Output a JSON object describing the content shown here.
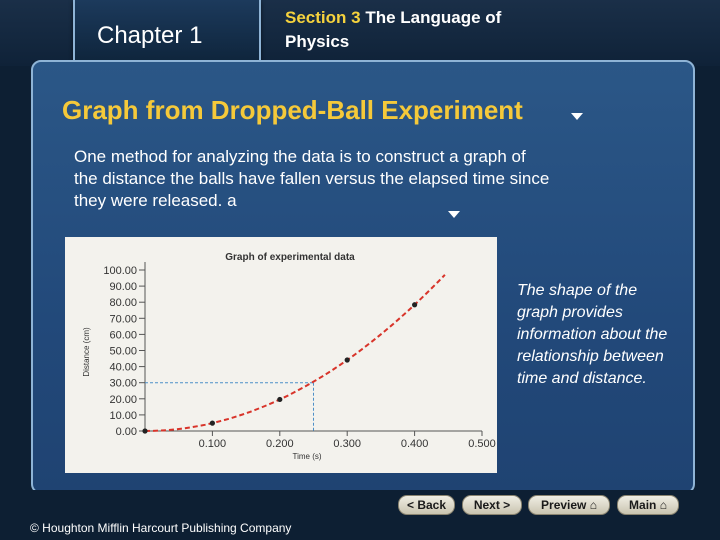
{
  "header": {
    "chapter_label": "Chapter",
    "chapter_number": "1",
    "section_label": "Section 3",
    "section_title_1": "The Language of",
    "section_title_2": "Physics"
  },
  "slide": {
    "title": "Graph from Dropped-Ball Experiment",
    "body": "One method for analyzing the data is to construct a graph of the distance the balls have fallen versus the elapsed time since they were released. a",
    "side_note": "The shape of the graph provides information about the relationship between time and distance."
  },
  "chart_data": {
    "type": "scatter",
    "title": "Graph of experimental data",
    "xlabel": "Time (s)",
    "ylabel": "Distance (cm)",
    "xlim": [
      0,
      0.5
    ],
    "ylim": [
      0,
      100
    ],
    "x_ticks": [
      "0.100",
      "0.200",
      "0.300",
      "0.400",
      "0.500"
    ],
    "y_ticks": [
      "0.00",
      "10.00",
      "20.00",
      "30.00",
      "40.00",
      "50.00",
      "60.00",
      "70.00",
      "80.00",
      "90.00",
      "100.00"
    ],
    "points": [
      {
        "x": 0.0,
        "y": 0.0
      },
      {
        "x": 0.1,
        "y": 4.9
      },
      {
        "x": 0.2,
        "y": 19.6
      },
      {
        "x": 0.3,
        "y": 44.1
      },
      {
        "x": 0.4,
        "y": 78.4
      }
    ],
    "curve": "dashed quadratic fit",
    "curve_color": "#d8342a",
    "highlight": {
      "x": 0.25,
      "y": 30.0
    }
  },
  "footer": {
    "copyright": "© Houghton Mifflin Harcourt Publishing Company",
    "back": "< Back",
    "next": "Next >",
    "preview": "Preview",
    "main": "Main"
  }
}
